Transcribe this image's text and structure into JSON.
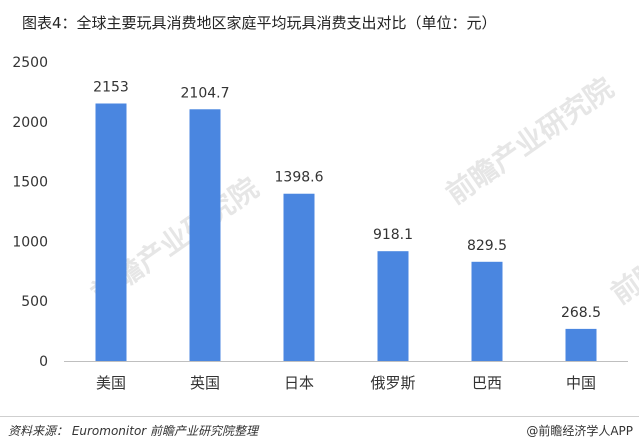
{
  "title": "图表4：全球主要玩具消费地区家庭平均玩具消费支出对比（单位：元）",
  "footer": {
    "source": "资料来源：  Euromonitor  前瞻产业研究院整理",
    "brand": "@前瞻经济学人APP"
  },
  "watermark": {
    "text": "前瞻产业研究院"
  },
  "colors": {
    "bar": "#4a86e0",
    "axis": "#bfbfbf",
    "text": "#333333",
    "watermark": "#e6e6e6"
  },
  "chart_data": {
    "type": "bar",
    "title": "图表4：全球主要玩具消费地区家庭平均玩具消费支出对比（单位：元）",
    "categories": [
      "美国",
      "英国",
      "日本",
      "俄罗斯",
      "巴西",
      "中国"
    ],
    "values": [
      2153,
      2104.7,
      1398.6,
      918.1,
      829.5,
      268.5
    ],
    "value_labels": [
      "2153",
      "2104.7",
      "1398.6",
      "918.1",
      "829.5",
      "268.5"
    ],
    "yticks": [
      "0",
      "500",
      "1000",
      "1500",
      "2000",
      "2500"
    ],
    "ylim": [
      0,
      2500
    ],
    "grid": false,
    "legend": "none"
  }
}
